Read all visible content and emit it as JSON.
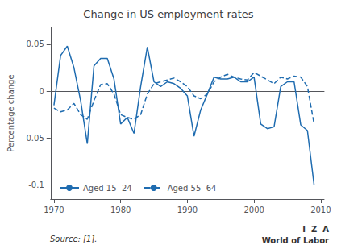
{
  "chart_data": {
    "type": "line",
    "title": "Change in US employment rates",
    "ylabel": "Percentage change",
    "annotations": [
      "Source: [1].",
      "I  Z  A",
      "World of Labor"
    ],
    "x": [
      1970,
      1971,
      1972,
      1973,
      1974,
      1975,
      1976,
      1977,
      1978,
      1979,
      1980,
      1981,
      1982,
      1983,
      1984,
      1985,
      1986,
      1987,
      1988,
      1989,
      1990,
      1991,
      1992,
      1993,
      1994,
      1995,
      1996,
      1997,
      1998,
      1999,
      2000,
      2001,
      2002,
      2003,
      2004,
      2005,
      2006,
      2007,
      2008,
      2009
    ],
    "series": [
      {
        "name": "Aged 15‒24",
        "color": "#1f6cb0",
        "line_style": "solid",
        "values": [
          -0.015,
          0.038,
          0.048,
          0.025,
          -0.01,
          -0.056,
          0.027,
          0.035,
          0.035,
          0.013,
          -0.035,
          -0.028,
          -0.045,
          0.005,
          0.047,
          0.01,
          0.005,
          0.01,
          0.008,
          0.003,
          -0.005,
          -0.048,
          -0.02,
          -0.003,
          0.015,
          0.013,
          0.013,
          0.015,
          0.01,
          0.01,
          0.015,
          -0.035,
          -0.04,
          -0.038,
          0.005,
          0.01,
          0.01,
          -0.036,
          -0.042,
          -0.1
        ]
      },
      {
        "name": "Aged 55‒64",
        "color": "#1f6cb0",
        "line_style": "dashed",
        "values": [
          -0.018,
          -0.022,
          -0.02,
          -0.013,
          -0.025,
          -0.03,
          -0.01,
          0.007,
          0.008,
          -0.003,
          -0.025,
          -0.028,
          -0.03,
          -0.025,
          -0.003,
          0.008,
          0.01,
          0.012,
          0.014,
          0.01,
          0.005,
          -0.005,
          -0.008,
          -0.003,
          0.01,
          0.015,
          0.018,
          0.015,
          0.013,
          0.012,
          0.02,
          0.016,
          0.012,
          0.008,
          0.015,
          0.013,
          0.016,
          0.015,
          0.005,
          -0.035
        ]
      }
    ],
    "xlim": [
      1969.5,
      2010.5
    ],
    "ylim": [
      -0.115,
      0.068
    ],
    "xticks": [
      1970,
      1980,
      1990,
      2000,
      2010
    ],
    "yticks": [
      -0.1,
      -0.05,
      0,
      0.05
    ],
    "grid": false,
    "legend": "lower left"
  }
}
